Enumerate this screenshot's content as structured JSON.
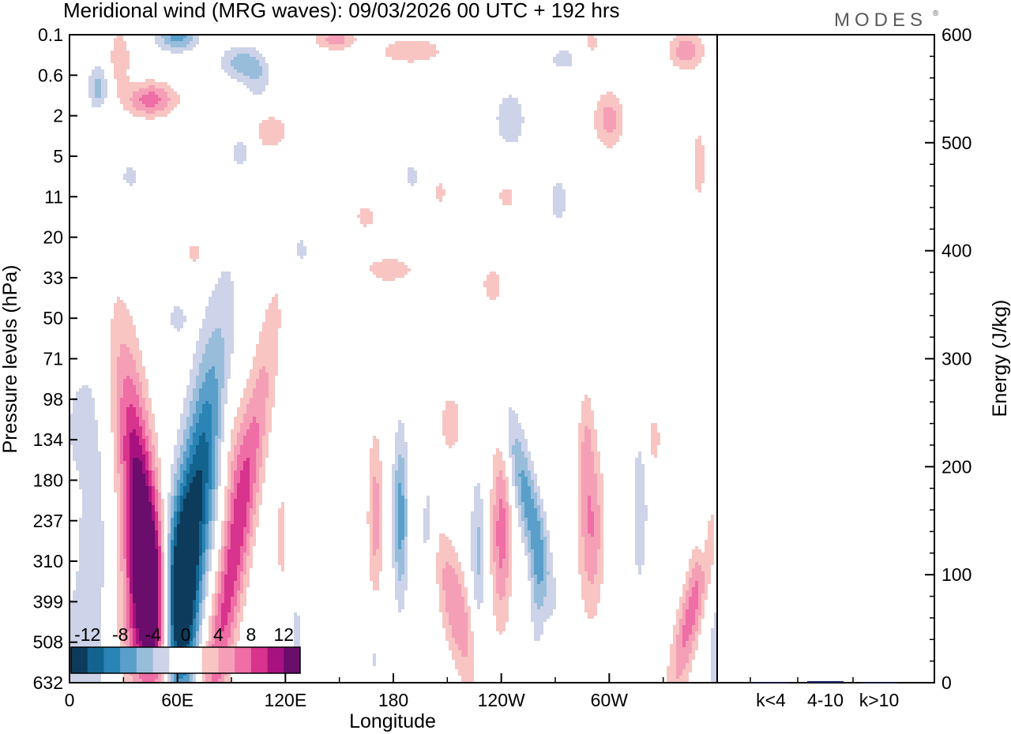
{
  "chart_data": {
    "type": "heatmap",
    "title": "Meridional wind (MRG waves):  09/03/2026  00 UTC  + 192 hrs",
    "brand": "MODES",
    "xlabel": "Longitude",
    "ylabel": "Pressure levels (hPa)",
    "y2label": "Energy (J/kg)",
    "x_ticks": [
      "0",
      "60E",
      "120E",
      "180",
      "120W",
      "60W"
    ],
    "x_tick_degrees": [
      0,
      60,
      120,
      180,
      240,
      300
    ],
    "xlim": [
      0,
      360
    ],
    "y_levels": [
      "0.1",
      "0.6",
      "2",
      "5",
      "11",
      "20",
      "33",
      "50",
      "71",
      "98",
      "134",
      "180",
      "237",
      "310",
      "399",
      "508",
      "632"
    ],
    "y2_ticks": [
      600,
      500,
      400,
      300,
      200,
      100,
      0
    ],
    "y2lim": [
      0,
      600
    ],
    "energy_bars": {
      "categories": [
        "k<4",
        "4-10",
        "k>10"
      ],
      "values": [
        0.5,
        1.5,
        0.3
      ]
    },
    "colorbar": {
      "levels": [
        -14,
        -12,
        -10,
        -8,
        -6,
        -4,
        -2,
        0,
        2,
        4,
        6,
        8,
        10,
        12,
        14
      ],
      "tick_labels": [
        "-12",
        "-8",
        "-4",
        "0",
        "4",
        "8",
        "12"
      ],
      "tick_values": [
        -12,
        -8,
        -4,
        0,
        4,
        8,
        12
      ],
      "colors": [
        "#0d3b5c",
        "#12648f",
        "#2a84b6",
        "#5a9fca",
        "#98bddb",
        "#cdd3e8",
        "#ffffff",
        "#ffffff",
        "#f8c5c2",
        "#f59fb7",
        "#ee6ea5",
        "#d8338d",
        "#a71280",
        "#6a0d6c"
      ]
    },
    "features": [
      {
        "lon": 42,
        "lev": 12.5,
        "slon": 7,
        "slev": 3.0,
        "amp": 15,
        "tilt": 0.4
      },
      {
        "lon": 40,
        "lev": 14.2,
        "slon": 8,
        "slev": 1.5,
        "amp": 8,
        "tilt": 0
      },
      {
        "lon": 68,
        "lev": 12.2,
        "slon": 8,
        "slev": 3.3,
        "amp": -13,
        "tilt": -0.5
      },
      {
        "lon": 62,
        "lev": 14.0,
        "slon": 6,
        "slev": 1.6,
        "amp": -9,
        "tilt": 0
      },
      {
        "lon": 91,
        "lev": 13.0,
        "slon": 6,
        "slev": 3.8,
        "amp": 9,
        "tilt": -0.6
      },
      {
        "lon": 90,
        "lev": 10.2,
        "slon": 6,
        "slev": 1.4,
        "amp": 3,
        "tilt": 0
      },
      {
        "lon": 12,
        "lev": 13.0,
        "slon": 6,
        "slev": 3.5,
        "amp": -4,
        "tilt": 0
      },
      {
        "lon": 4,
        "lev": 9.8,
        "slon": 4,
        "slev": 0.8,
        "amp": -2.5,
        "tilt": 0
      },
      {
        "lon": 0,
        "lev": 15.5,
        "slon": 4,
        "slev": 1.3,
        "amp": -3,
        "tilt": 0
      },
      {
        "lon": 118,
        "lev": 12.4,
        "slon": 3,
        "slev": 1.2,
        "amp": 2.6,
        "tilt": 0
      },
      {
        "lon": 126,
        "lev": 15.0,
        "slon": 3,
        "slev": 1.1,
        "amp": -2.6,
        "tilt": 0
      },
      {
        "lon": 170,
        "lev": 11.9,
        "slon": 3,
        "slev": 1.5,
        "amp": 5,
        "tilt": 0
      },
      {
        "lon": 184,
        "lev": 11.9,
        "slon": 3,
        "slev": 1.5,
        "amp": -7,
        "tilt": 0
      },
      {
        "lon": 199,
        "lev": 12.2,
        "slon": 3,
        "slev": 1.3,
        "amp": -3,
        "tilt": 0
      },
      {
        "lon": 170,
        "lev": 15.3,
        "slon": 2,
        "slev": 0.8,
        "amp": -2.5,
        "tilt": 0
      },
      {
        "lon": 215,
        "lev": 14.2,
        "slon": 6,
        "slev": 1.3,
        "amp": 6,
        "tilt": 0.7
      },
      {
        "lon": 240,
        "lev": 12.3,
        "slon": 4,
        "slev": 1.6,
        "amp": 7,
        "tilt": 0
      },
      {
        "lon": 227,
        "lev": 12.8,
        "slon": 3,
        "slev": 1.4,
        "amp": -4.5,
        "tilt": 0
      },
      {
        "lon": 255,
        "lev": 11.6,
        "slon": 5,
        "slev": 1.7,
        "amp": -7,
        "tilt": 0.8
      },
      {
        "lon": 260,
        "lev": 13.8,
        "slon": 3,
        "slev": 1.1,
        "amp": -3.5,
        "tilt": 0
      },
      {
        "lon": 212,
        "lev": 9.6,
        "slon": 4,
        "slev": 0.5,
        "amp": 4,
        "tilt": 0
      },
      {
        "lon": 290,
        "lev": 12.2,
        "slon": 5,
        "slev": 1.5,
        "amp": 6,
        "tilt": 0
      },
      {
        "lon": 287,
        "lev": 10.0,
        "slon": 3,
        "slev": 1.0,
        "amp": 3,
        "tilt": 0
      },
      {
        "lon": 317,
        "lev": 11.8,
        "slon": 3,
        "slev": 1.3,
        "amp": -4,
        "tilt": 0
      },
      {
        "lon": 325,
        "lev": 10.0,
        "slon": 3,
        "slev": 0.5,
        "amp": 3,
        "tilt": 0
      },
      {
        "lon": 346,
        "lev": 14.2,
        "slon": 5,
        "slev": 1.6,
        "amp": 7,
        "tilt": -0.8
      },
      {
        "lon": 352,
        "lev": 12.3,
        "slon": 2,
        "slev": 0.8,
        "amp": -3,
        "tilt": 0
      },
      {
        "lon": 16,
        "lev": 1.3,
        "slon": 4,
        "slev": 0.4,
        "amp": -5,
        "tilt": 0
      },
      {
        "lon": 45,
        "lev": 1.6,
        "slon": 10,
        "slev": 0.3,
        "amp": 7,
        "tilt": -0.05
      },
      {
        "lon": 28,
        "lev": 0.6,
        "slon": 4,
        "slev": 0.5,
        "amp": 4,
        "tilt": 0
      },
      {
        "lon": 60,
        "lev": 0.05,
        "slon": 8,
        "slev": 0.25,
        "amp": -7,
        "tilt": 0
      },
      {
        "lon": 95,
        "lev": 0.7,
        "slon": 8,
        "slev": 0.3,
        "amp": -5,
        "tilt": 0
      },
      {
        "lon": 105,
        "lev": 1.1,
        "slon": 5,
        "slev": 0.4,
        "amp": -3,
        "tilt": 0
      },
      {
        "lon": 148,
        "lev": 0.1,
        "slon": 8,
        "slev": 0.2,
        "amp": 5,
        "tilt": 0
      },
      {
        "lon": 190,
        "lev": 0.4,
        "slon": 14,
        "slev": 0.25,
        "amp": 3.5,
        "tilt": -0.03
      },
      {
        "lon": 112,
        "lev": 2.4,
        "slon": 7,
        "slev": 0.35,
        "amp": 3.5,
        "tilt": 0
      },
      {
        "lon": 95,
        "lev": 2.9,
        "slon": 4,
        "slev": 0.3,
        "amp": -3,
        "tilt": 0
      },
      {
        "lon": 245,
        "lev": 2.1,
        "slon": 6,
        "slev": 0.5,
        "amp": -4,
        "tilt": 0
      },
      {
        "lon": 300,
        "lev": 2.1,
        "slon": 6,
        "slev": 0.5,
        "amp": 5,
        "tilt": 0
      },
      {
        "lon": 345,
        "lev": 0.4,
        "slon": 7,
        "slev": 0.4,
        "amp": 3,
        "tilt": 0
      },
      {
        "lon": 350,
        "lev": 3.2,
        "slon": 3,
        "slev": 0.8,
        "amp": 3,
        "tilt": 0
      },
      {
        "lon": 275,
        "lev": 0.6,
        "slon": 8,
        "slev": 0.3,
        "amp": -2.6,
        "tilt": 0
      },
      {
        "lon": 165,
        "lev": 4.5,
        "slon": 6,
        "slev": 0.3,
        "amp": 2.6,
        "tilt": 0
      },
      {
        "lon": 178,
        "lev": 5.8,
        "slon": 15,
        "slev": 0.35,
        "amp": 2.6,
        "tilt": 0.03
      },
      {
        "lon": 235,
        "lev": 6.2,
        "slon": 6,
        "slev": 0.5,
        "amp": 2.6,
        "tilt": 0
      },
      {
        "lon": 272,
        "lev": 4.1,
        "slon": 5,
        "slev": 0.6,
        "amp": -2.6,
        "tilt": 0
      },
      {
        "lon": 128,
        "lev": 5.3,
        "slon": 5,
        "slev": 0.5,
        "amp": -2.6,
        "tilt": 0
      },
      {
        "lon": 60,
        "lev": 7.0,
        "slon": 5,
        "slev": 0.4,
        "amp": -2.6,
        "tilt": 0
      },
      {
        "lon": 243,
        "lev": 4.0,
        "slon": 5,
        "slev": 0.3,
        "amp": 2.6,
        "tilt": 0
      },
      {
        "lon": 70,
        "lev": 5.4,
        "slon": 5,
        "slev": 0.3,
        "amp": 2.6,
        "tilt": 0
      },
      {
        "lon": 190,
        "lev": 3.5,
        "slon": 4,
        "slev": 0.3,
        "amp": -2.6,
        "tilt": 0
      },
      {
        "lon": 34,
        "lev": 3.5,
        "slon": 5,
        "slev": 0.3,
        "amp": -2.6,
        "tilt": 0
      },
      {
        "lon": 206,
        "lev": 3.9,
        "slon": 3,
        "slev": 0.3,
        "amp": 2.6,
        "tilt": 0
      },
      {
        "lon": 290,
        "lev": 0.2,
        "slon": 5,
        "slev": 0.3,
        "amp": 2.6,
        "tilt": 0
      },
      {
        "lon": 340,
        "lev": 0.4,
        "slon": 6,
        "slev": 0.3,
        "amp": 2.6,
        "tilt": 0
      }
    ]
  }
}
